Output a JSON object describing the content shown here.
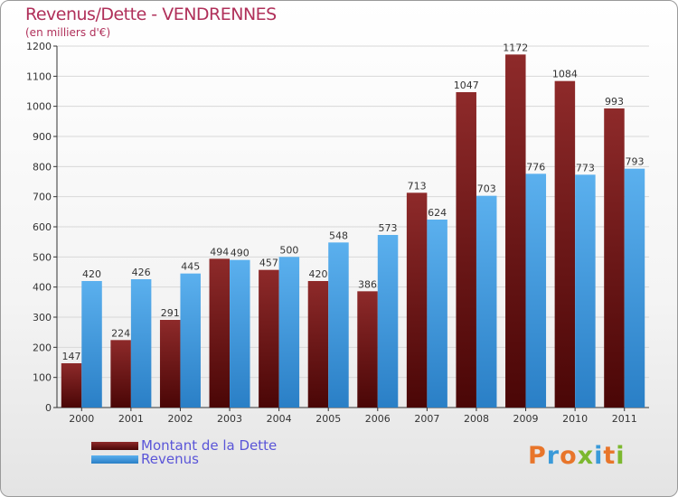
{
  "header": {
    "title": "Revenus/Dette - VENDRENNES",
    "subtitle": "(en milliers d'€)"
  },
  "colors": {
    "dette": "#7a1a1a",
    "revenus": "#4aa3e6",
    "title": "#b0305a",
    "legend_text": "#5a55d8"
  },
  "legend": {
    "dette_label": "Montant de la Dette",
    "revenus_label": "Revenus"
  },
  "logo": {
    "text": "Proxiti"
  },
  "chart_data": {
    "type": "bar",
    "title": "Revenus/Dette - VENDRENNES",
    "ylabel": "(en milliers d'€)",
    "xlabel": "",
    "ylim": [
      0,
      1200
    ],
    "yticks": [
      0,
      100,
      200,
      300,
      400,
      500,
      600,
      700,
      800,
      900,
      1000,
      1100,
      1200
    ],
    "grid": true,
    "legend_position": "bottom-left",
    "categories": [
      "2000",
      "2001",
      "2002",
      "2003",
      "2004",
      "2005",
      "2006",
      "2007",
      "2008",
      "2009",
      "2010",
      "2011"
    ],
    "series": [
      {
        "name": "Montant de la Dette",
        "values": [
          147,
          224,
          291,
          494,
          457,
          420,
          386,
          713,
          1047,
          1172,
          1084,
          993
        ]
      },
      {
        "name": "Revenus",
        "values": [
          420,
          426,
          445,
          490,
          500,
          548,
          573,
          624,
          703,
          776,
          773,
          793
        ]
      }
    ]
  }
}
